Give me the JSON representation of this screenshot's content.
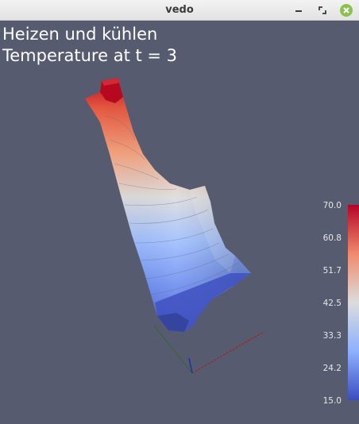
{
  "window": {
    "title": "vedo",
    "controls": [
      "minimize-icon",
      "maximize-icon",
      "close-icon"
    ]
  },
  "overlay": {
    "line1": "Heizen und kühlen",
    "line2": "Temperature at t = 3"
  },
  "colorbar": {
    "ticks": [
      "70.0",
      "60.8",
      "51.7",
      "42.5",
      "33.3",
      "24.2",
      "15.0"
    ],
    "min": 15.0,
    "max": 70.0,
    "colormap": [
      "#b40426",
      "#f08a6c",
      "#dcdcdc",
      "#8db0fe",
      "#3b4cc0"
    ]
  },
  "scene": {
    "background": "#575b6f",
    "axes_colors": {
      "x": "#b01818",
      "y": "#2a6a2a",
      "z": "#2030a0"
    }
  }
}
